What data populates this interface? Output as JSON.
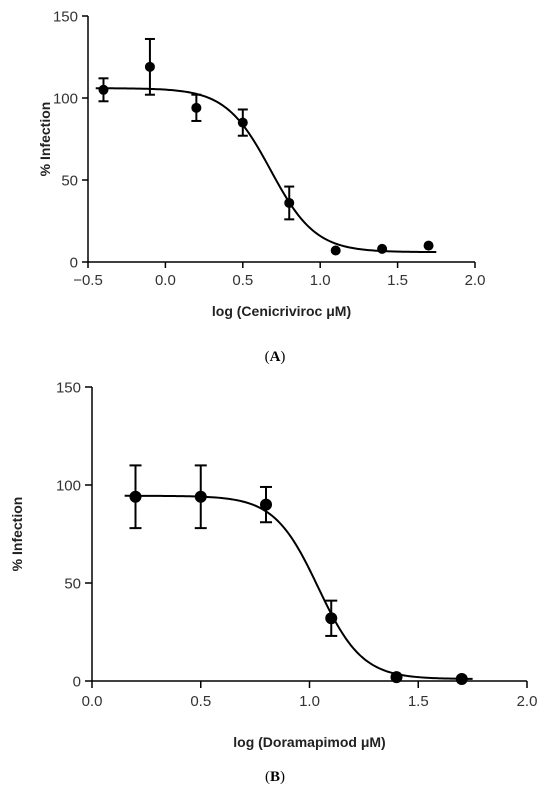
{
  "chart_data": [
    {
      "type": "scatter",
      "panel_label": "(A)",
      "xlabel": "log (Cenicriviroc μM)",
      "ylabel": "% Infection",
      "xlim": [
        -0.5,
        2.0
      ],
      "ylim": [
        0,
        150
      ],
      "xticks": [
        "−0.5",
        "0.0",
        "0.5",
        "1.0",
        "1.5",
        "2.0"
      ],
      "xtick_values": [
        -0.5,
        0.0,
        0.5,
        1.0,
        1.5,
        2.0
      ],
      "yticks": [
        "0",
        "50",
        "100",
        "150"
      ],
      "ytick_values": [
        0,
        50,
        100,
        150
      ],
      "grid": false,
      "points": [
        {
          "x": -0.4,
          "y": 105,
          "err": 7
        },
        {
          "x": -0.1,
          "y": 119,
          "err": 17
        },
        {
          "x": 0.2,
          "y": 94,
          "err": 8
        },
        {
          "x": 0.5,
          "y": 85,
          "err": 8
        },
        {
          "x": 0.8,
          "y": 36,
          "err": 10
        },
        {
          "x": 1.1,
          "y": 7,
          "err": 0
        },
        {
          "x": 1.4,
          "y": 8,
          "err": 0
        },
        {
          "x": 1.7,
          "y": 10,
          "err": 0
        }
      ],
      "fit": {
        "model": "sigmoidal dose-response",
        "top": 106,
        "bottom": 6,
        "log_ic50": 0.68,
        "hill": -3.0,
        "x_range": [
          -0.45,
          1.75
        ]
      }
    },
    {
      "type": "scatter",
      "panel_label": "(B)",
      "xlabel": "log (Doramapimod μM)",
      "ylabel": "% Infection",
      "xlim": [
        0.0,
        2.0
      ],
      "ylim": [
        0,
        150
      ],
      "xticks": [
        "0.0",
        "0.5",
        "1.0",
        "1.5",
        "2.0"
      ],
      "xtick_values": [
        0.0,
        0.5,
        1.0,
        1.5,
        2.0
      ],
      "yticks": [
        "0",
        "50",
        "100",
        "150"
      ],
      "ytick_values": [
        0,
        50,
        100,
        150
      ],
      "grid": false,
      "points": [
        {
          "x": 0.2,
          "y": 94,
          "err": 16
        },
        {
          "x": 0.5,
          "y": 94,
          "err": 16
        },
        {
          "x": 0.8,
          "y": 90,
          "err": 9
        },
        {
          "x": 1.1,
          "y": 32,
          "err": 9
        },
        {
          "x": 1.4,
          "y": 2,
          "err": 0
        },
        {
          "x": 1.7,
          "y": 1,
          "err": 0
        }
      ],
      "fit": {
        "model": "sigmoidal dose-response",
        "top": 94.5,
        "bottom": 1,
        "log_ic50": 1.04,
        "hill": -4.3,
        "x_range": [
          0.15,
          1.75
        ]
      }
    }
  ]
}
